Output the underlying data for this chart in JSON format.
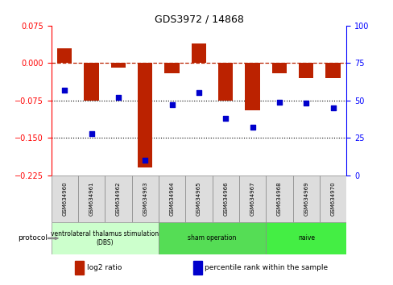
{
  "title": "GDS3972 / 14868",
  "samples": [
    "GSM634960",
    "GSM634961",
    "GSM634962",
    "GSM634963",
    "GSM634964",
    "GSM634965",
    "GSM634966",
    "GSM634967",
    "GSM634968",
    "GSM634969",
    "GSM634970"
  ],
  "log2_ratio": [
    0.03,
    -0.075,
    -0.01,
    -0.21,
    -0.02,
    0.04,
    -0.075,
    -0.095,
    -0.02,
    -0.03,
    -0.03
  ],
  "percentile_rank": [
    57,
    28,
    52,
    10,
    47,
    55,
    38,
    32,
    49,
    48,
    45
  ],
  "ylim_left": [
    -0.225,
    0.075
  ],
  "ylim_right": [
    0,
    100
  ],
  "yticks_left": [
    0.075,
    0.0,
    -0.075,
    -0.15,
    -0.225
  ],
  "yticks_right": [
    100,
    75,
    50,
    25,
    0
  ],
  "dotted_lines": [
    -0.075,
    -0.15
  ],
  "bar_color": "#bb2200",
  "dot_color": "#0000cc",
  "protocol_groups": [
    {
      "label": "ventrolateral thalamus stimulation\n(DBS)",
      "start": 0,
      "end": 3,
      "color": "#ccffcc"
    },
    {
      "label": "sham operation",
      "start": 4,
      "end": 7,
      "color": "#55dd55"
    },
    {
      "label": "naive",
      "start": 8,
      "end": 10,
      "color": "#44ee44"
    }
  ],
  "legend_items": [
    {
      "label": "log2 ratio",
      "color": "#bb2200"
    },
    {
      "label": "percentile rank within the sample",
      "color": "#0000cc"
    }
  ],
  "bar_width": 0.55,
  "background_color": "#ffffff",
  "title_fontsize": 9,
  "tick_fontsize": 7,
  "sample_fontsize": 5,
  "protocol_fontsize": 5.5,
  "legend_fontsize": 6.5
}
